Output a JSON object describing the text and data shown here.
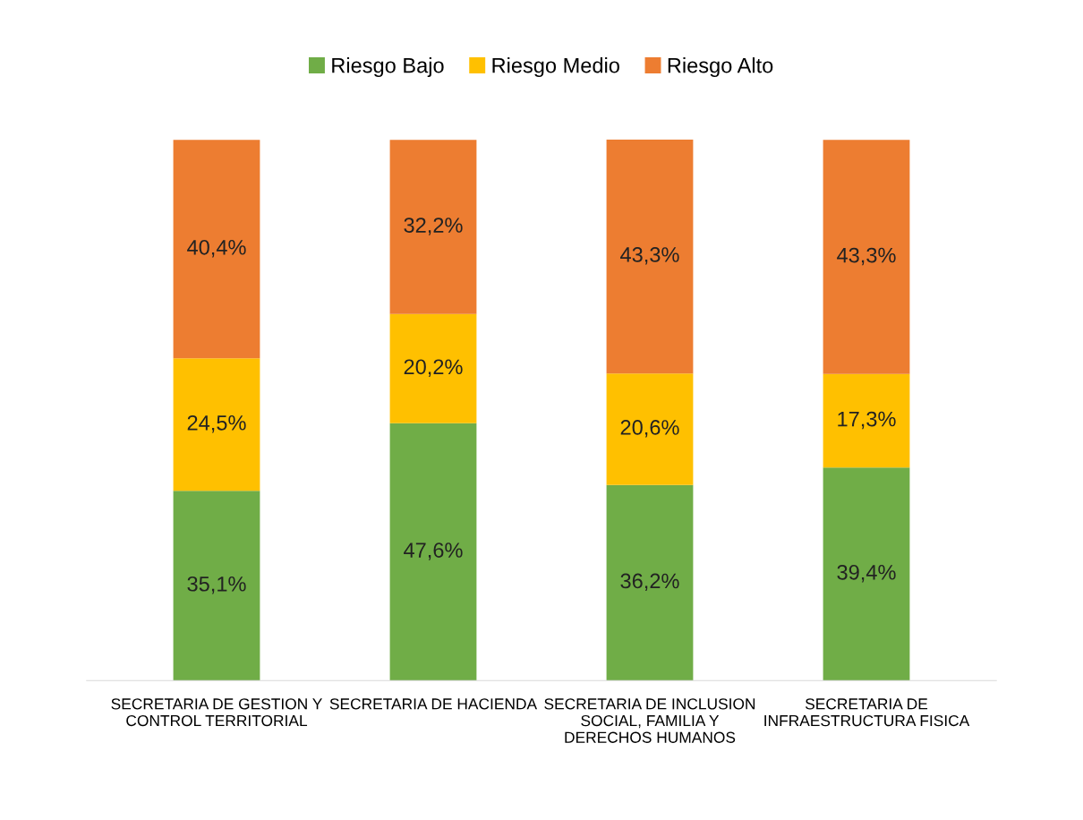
{
  "chart_data": {
    "type": "bar",
    "stacked": true,
    "legend": "top",
    "categories": [
      "SECRETARIA DE GESTION Y CONTROL TERRITORIAL",
      "SECRETARIA DE HACIENDA",
      "SECRETARIA DE INCLUSION SOCIAL, FAMILIA Y DERECHOS HUMANOS",
      "SECRETARIA DE INFRAESTRUCTURA FISICA"
    ],
    "series": [
      {
        "name": "Riesgo Bajo",
        "color": "#70ad47",
        "values": [
          35.1,
          47.6,
          36.2,
          39.4
        ],
        "value_labels": [
          "35,1%",
          "47,6%",
          "36,2%",
          "39,4%"
        ]
      },
      {
        "name": "Riesgo Medio",
        "color": "#ffc000",
        "values": [
          24.5,
          20.2,
          20.6,
          17.3
        ],
        "value_labels": [
          "24,5%",
          "20,2%",
          "20,6%",
          "17,3%"
        ]
      },
      {
        "name": "Riesgo Alto",
        "color": "#ed7d31",
        "values": [
          40.4,
          32.2,
          43.3,
          43.3
        ],
        "value_labels": [
          "40,4%",
          "32,2%",
          "43,3%",
          "43,3%"
        ]
      }
    ]
  }
}
